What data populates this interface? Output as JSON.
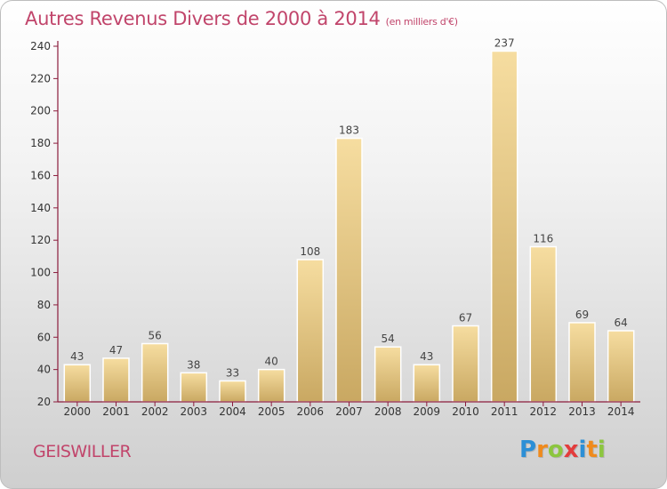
{
  "title": "Autres Revenus Divers de 2000 à 2014",
  "title_unit": "(en milliers d'€)",
  "commune": "GEISWILLER",
  "logo": {
    "text": "Proxiti",
    "letters": [
      {
        "ch": "P",
        "color": "#2c8fd6"
      },
      {
        "ch": "r",
        "color": "#f08a1c"
      },
      {
        "ch": "o",
        "color": "#8cc63f"
      },
      {
        "ch": "x",
        "color": "#e33c3c"
      },
      {
        "ch": "i",
        "color": "#2c8fd6"
      },
      {
        "ch": "t",
        "color": "#f08a1c"
      },
      {
        "ch": "i",
        "color": "#8cc63f"
      }
    ]
  },
  "colors": {
    "title": "#c1456b",
    "bar_light": "#f6dda0",
    "bar_dark": "#c9a862",
    "axis": "#8b1c3c"
  },
  "chart_data": {
    "type": "bar",
    "title": "Autres Revenus Divers de 2000 à 2014",
    "subtitle": "(en milliers d'€)",
    "categories": [
      "2000",
      "2001",
      "2002",
      "2003",
      "2004",
      "2005",
      "2006",
      "2007",
      "2008",
      "2009",
      "2010",
      "2011",
      "2012",
      "2013",
      "2014"
    ],
    "values": [
      43,
      47,
      56,
      38,
      33,
      40,
      108,
      183,
      54,
      43,
      67,
      237,
      116,
      69,
      64
    ],
    "ylim": [
      20,
      240
    ],
    "yticks": [
      20,
      40,
      60,
      80,
      100,
      120,
      140,
      160,
      180,
      200,
      220,
      240
    ],
    "grid": false,
    "xlabel": "",
    "ylabel": ""
  }
}
